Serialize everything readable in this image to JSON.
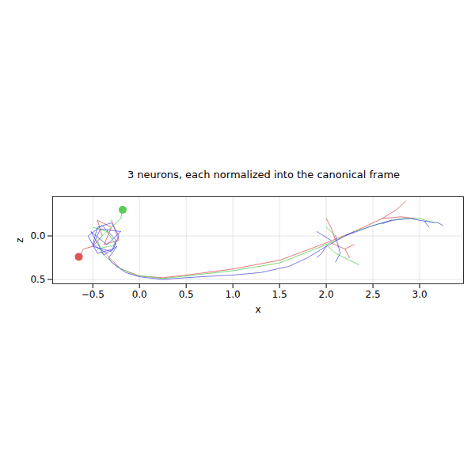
{
  "chart_data": {
    "type": "line",
    "title": "3 neurons, each normalized into the canonical frame",
    "x_label": "x",
    "y_label": "z",
    "xlim": [
      -0.93,
      3.47
    ],
    "ylim": [
      0.55,
      -0.45
    ],
    "xticks": [
      {
        "value": -0.5,
        "label": "−0.5"
      },
      {
        "value": 0,
        "label": "0.0"
      },
      {
        "value": 0.5,
        "label": "0.5"
      },
      {
        "value": 1,
        "label": "1.0"
      },
      {
        "value": 1.5,
        "label": "1.5"
      },
      {
        "value": 2,
        "label": "2.0"
      },
      {
        "value": 2.5,
        "label": "2.5"
      },
      {
        "value": 3,
        "label": "3.0"
      }
    ],
    "yticks": [
      {
        "value": 0,
        "label": "0.0"
      },
      {
        "value": 0.5,
        "label": "0.5"
      }
    ],
    "grid": true,
    "series": [
      {
        "color": "#e05555",
        "soma": [
          -0.65,
          0.24
        ],
        "x": [
          -0.65,
          -0.6,
          -0.5,
          -0.4,
          -0.45,
          -0.3,
          -0.38,
          -0.22,
          -0.3,
          null,
          -0.35,
          -0.2,
          0.0,
          0.25,
          0.5,
          1.0,
          1.5,
          2.0,
          2.3,
          2.6,
          2.75,
          2.85,
          null,
          2.6,
          2.8,
          2.95,
          null,
          2.05,
          2.2,
          2.3,
          null,
          2.1,
          2.05,
          2.0,
          null,
          2.2,
          2.25
        ],
        "z": [
          0.24,
          0.15,
          0.12,
          0.0,
          -0.18,
          -0.1,
          0.1,
          0.05,
          -0.18,
          null,
          0.22,
          0.38,
          0.46,
          0.48,
          0.45,
          0.38,
          0.28,
          0.08,
          -0.05,
          -0.2,
          -0.3,
          -0.4,
          null,
          -0.2,
          -0.22,
          -0.2,
          null,
          0.08,
          0.15,
          0.1,
          null,
          0.05,
          -0.1,
          -0.2,
          null,
          0.15,
          0.25
        ]
      },
      {
        "color": "#55d055",
        "soma": [
          -0.18,
          -0.3
        ],
        "x": [
          -0.18,
          -0.2,
          -0.3,
          -0.45,
          -0.4,
          null,
          -0.5,
          -0.35,
          -0.25,
          -0.45,
          null,
          -0.4,
          -0.25,
          -0.05,
          0.25,
          0.5,
          1.0,
          1.5,
          2.0,
          2.3,
          2.6,
          2.8,
          3.0,
          3.15,
          null,
          2.0,
          2.1,
          2.25,
          2.35,
          null,
          2.1,
          2.0
        ],
        "z": [
          -0.3,
          -0.2,
          -0.1,
          0.05,
          0.2,
          null,
          -0.1,
          -0.05,
          0.1,
          0.15,
          null,
          0.2,
          0.35,
          0.45,
          0.49,
          0.46,
          0.4,
          0.31,
          0.1,
          -0.05,
          -0.15,
          -0.2,
          -0.2,
          -0.15,
          null,
          0.1,
          0.2,
          0.28,
          0.33,
          null,
          0.0,
          -0.1
        ]
      },
      {
        "color": "#5555e0",
        "x": [
          -0.35,
          -0.5,
          -0.45,
          -0.3,
          -0.22,
          -0.28,
          -0.45,
          -0.55,
          -0.4,
          -0.25,
          -0.3,
          -0.5,
          -0.42,
          -0.2,
          -0.35,
          -0.52,
          -0.38,
          -0.24,
          -0.33,
          -0.3,
          -0.15,
          0.0,
          0.25,
          0.5,
          0.8,
          1.0,
          1.3,
          1.6,
          1.8,
          2.0,
          2.2,
          2.5,
          2.7,
          2.9,
          3.05,
          3.2,
          null,
          2.0,
          1.95,
          1.9,
          null,
          2.05,
          1.9,
          null,
          2.1,
          2.15,
          2.1,
          null,
          2.2,
          2.3,
          null,
          2.7,
          2.6,
          null,
          3.05,
          3.1,
          null,
          3.2,
          3.25
        ],
        "z": [
          0.2,
          0.1,
          -0.1,
          -0.15,
          0.0,
          0.15,
          0.2,
          0.0,
          -0.12,
          0.05,
          0.18,
          0.12,
          -0.08,
          -0.05,
          0.1,
          -0.05,
          0.22,
          0.12,
          0.25,
          0.3,
          0.42,
          0.47,
          0.5,
          0.48,
          0.46,
          0.45,
          0.42,
          0.35,
          0.25,
          0.12,
          0.0,
          -0.12,
          -0.18,
          -0.2,
          -0.17,
          -0.15,
          null,
          0.12,
          0.2,
          0.25,
          null,
          0.05,
          -0.05,
          null,
          0.0,
          0.2,
          0.3,
          null,
          0.0,
          -0.05,
          null,
          -0.18,
          -0.14,
          null,
          -0.17,
          -0.1,
          null,
          -0.15,
          -0.12
        ]
      }
    ]
  }
}
